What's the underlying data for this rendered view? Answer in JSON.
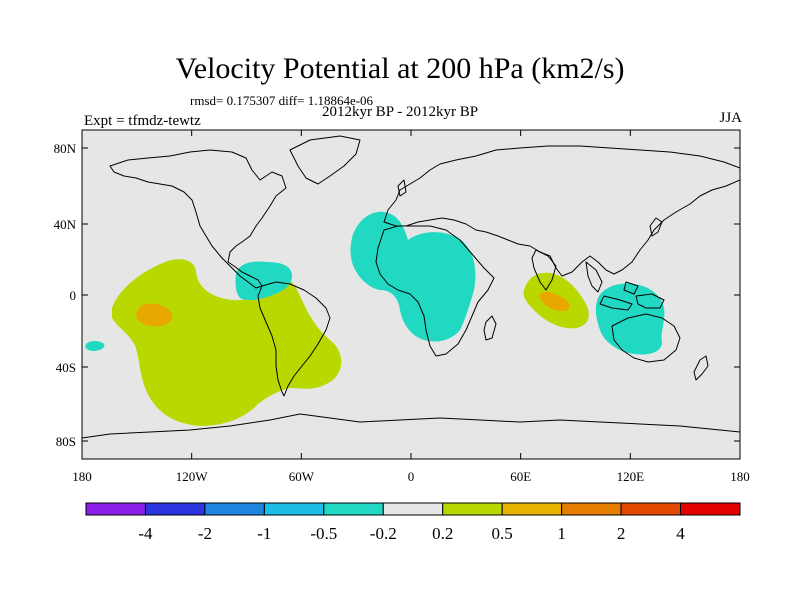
{
  "title": "Velocity Potential at 200 hPa (km2/s)",
  "stats": "rmsd= 0.175307 diff= 1.18864e-06",
  "experiment": "Expt = tfmdz-tewtz",
  "subtitle": "2012kyr BP - 2012kyr BP",
  "season": "JJA",
  "colors": {
    "background": "#e6e6e6",
    "land_outline": "#000000",
    "pos_small": "#b9d800",
    "pos_mid": "#e8a800",
    "neg_small": "#21d9c3"
  },
  "axes": {
    "lon_ticks": [
      "180",
      "120W",
      "60W",
      "0",
      "60E",
      "120E",
      "180"
    ],
    "lat_ticks": [
      "80N",
      "40N",
      "0",
      "40S",
      "80S"
    ]
  },
  "colorbar": {
    "colors": [
      "#8a1ee6",
      "#2a35e0",
      "#1e86e0",
      "#1cbde6",
      "#21d9c3",
      "#e6e6e6",
      "#b9d800",
      "#e8b400",
      "#e57d00",
      "#e24800",
      "#e20000"
    ],
    "labels": [
      "-4",
      "-2",
      "-1",
      "-0.5",
      "-0.2",
      "0.2",
      "0.5",
      "1",
      "2",
      "4"
    ]
  },
  "anomaly_regions": [
    {
      "name": "eastern-pacific-positive",
      "level": "0.2 to 0.5"
    },
    {
      "name": "pacific-core-positive",
      "level": "0.5 to 1"
    },
    {
      "name": "caribbean-negative",
      "level": "-0.5 to -0.2"
    },
    {
      "name": "africa-negative",
      "level": "-0.5 to -0.2"
    },
    {
      "name": "indian-ocean-positive",
      "level": "0.2 to 0.5"
    },
    {
      "name": "indian-ocean-core",
      "level": "0.5 to 1"
    },
    {
      "name": "maritime-continent-negative",
      "level": "-0.5 to -0.2"
    },
    {
      "name": "south-pacific-negative-small",
      "level": "-0.5 to -0.2"
    }
  ]
}
